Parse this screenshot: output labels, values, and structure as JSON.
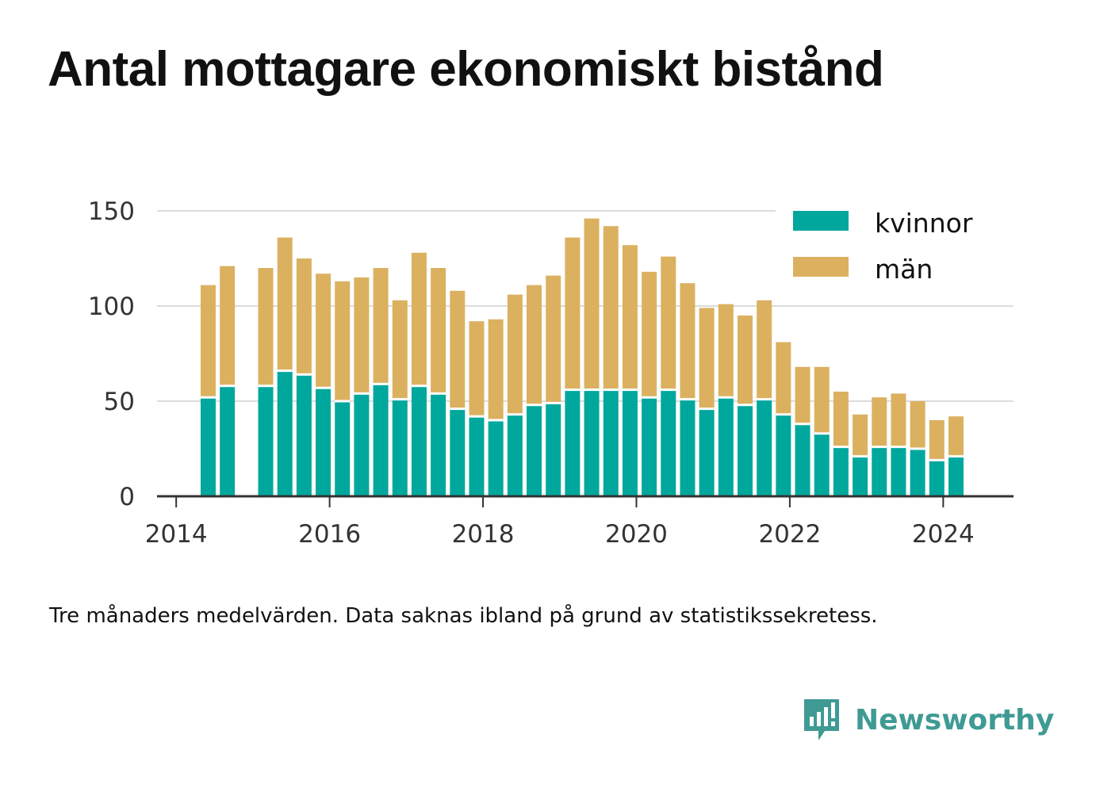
{
  "title": "Antal mottagare ekonomiskt bistånd",
  "note": "Tre månaders medelvärden. Data saknas ibland på grund av statistikssekretess.",
  "brand": {
    "name": "Newsworthy",
    "icon": "newsworthy-logo-icon",
    "color": "#3f9a94"
  },
  "chart_data": {
    "type": "bar",
    "stacked": true,
    "title": "",
    "xlabel": "",
    "ylabel": "",
    "x_ticks": [
      "2014",
      "2016",
      "2018",
      "2020",
      "2022",
      "2024"
    ],
    "y_ticks": [
      "0",
      "50",
      "100",
      "150"
    ],
    "ylim": [
      0,
      150
    ],
    "xlim": [
      "2013-10",
      "2024-12"
    ],
    "grid": true,
    "legend_position": "top-right",
    "x": [
      "2014-06",
      "2014-09",
      "2015-03",
      "2015-06",
      "2015-09",
      "2015-12",
      "2016-03",
      "2016-06",
      "2016-09",
      "2016-12",
      "2017-03",
      "2017-06",
      "2017-09",
      "2017-12",
      "2018-03",
      "2018-06",
      "2018-09",
      "2018-12",
      "2019-03",
      "2019-06",
      "2019-09",
      "2019-12",
      "2020-03",
      "2020-06",
      "2020-09",
      "2020-12",
      "2021-03",
      "2021-06",
      "2021-09",
      "2021-12",
      "2022-03",
      "2022-06",
      "2022-09",
      "2022-12",
      "2023-03",
      "2023-06",
      "2023-09",
      "2023-12",
      "2024-03"
    ],
    "series": [
      {
        "name": "kvinnor",
        "color": "#00a79d",
        "values": [
          52,
          58,
          58,
          66,
          64,
          57,
          50,
          54,
          59,
          51,
          58,
          54,
          46,
          42,
          40,
          43,
          48,
          49,
          56,
          56,
          56,
          56,
          52,
          56,
          51,
          46,
          52,
          48,
          51,
          43,
          38,
          33,
          26,
          21,
          26,
          26,
          25,
          19,
          21
        ]
      },
      {
        "name": "män",
        "color": "#dbb160",
        "values": [
          59,
          63,
          62,
          70,
          61,
          60,
          63,
          61,
          61,
          52,
          70,
          66,
          62,
          50,
          53,
          63,
          63,
          67,
          80,
          90,
          86,
          76,
          66,
          70,
          61,
          53,
          49,
          47,
          52,
          38,
          30,
          35,
          29,
          22,
          26,
          28,
          25,
          21,
          21
        ]
      }
    ]
  }
}
